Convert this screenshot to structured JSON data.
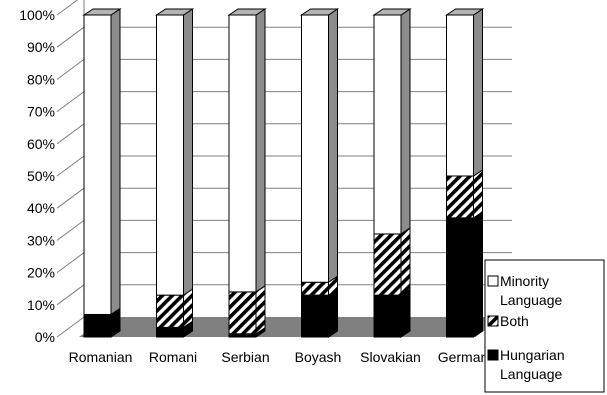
{
  "chart_data": {
    "type": "bar",
    "stacked": true,
    "three_d": true,
    "categories": [
      "Romanian",
      "Romani",
      "Serbian",
      "Boyash",
      "Slovakian",
      "German"
    ],
    "series": [
      {
        "name": "Hungarian Language",
        "values": [
          7,
          3,
          1,
          13,
          13,
          37
        ],
        "fill": "#000000"
      },
      {
        "name": "Both",
        "values": [
          0,
          10,
          13,
          4,
          19,
          13
        ],
        "fill": "hatch"
      },
      {
        "name": "Minority Language",
        "values": [
          93,
          87,
          86,
          83,
          68,
          50
        ],
        "fill": "#ffffff"
      }
    ],
    "y_ticks": [
      "0%",
      "10%",
      "20%",
      "30%",
      "40%",
      "50%",
      "60%",
      "70%",
      "80%",
      "90%",
      "100%"
    ],
    "ylim": [
      0,
      100
    ],
    "grid": true,
    "legend_position": "bottom-right",
    "legend": [
      {
        "series": "Minority Language",
        "lines": [
          "Minority",
          "Language"
        ]
      },
      {
        "series": "Both",
        "lines": [
          "Both"
        ]
      },
      {
        "series": "Hungarian Language",
        "lines": [
          "Hungarian",
          "Language"
        ]
      }
    ],
    "colors": {
      "floor": "#808080",
      "side": "#8c8c8c",
      "top": "#b4b4b4",
      "grid": "#808080"
    }
  }
}
